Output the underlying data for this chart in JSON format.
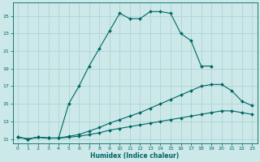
{
  "xlabel": "Humidex (Indice chaleur)",
  "bg_color": "#cce8e8",
  "grid_color": "#b0d4d4",
  "line_color": "#006666",
  "xlim": [
    -0.5,
    23.5
  ],
  "ylim": [
    10.5,
    26.5
  ],
  "xticks": [
    0,
    1,
    2,
    3,
    4,
    5,
    6,
    7,
    8,
    9,
    10,
    11,
    12,
    13,
    14,
    15,
    16,
    17,
    18,
    19,
    20,
    21,
    22,
    23
  ],
  "yticks": [
    11,
    13,
    15,
    17,
    19,
    21,
    23,
    25
  ],
  "lines": [
    {
      "x": [
        0,
        1,
        2,
        3,
        4,
        5,
        6,
        7,
        8,
        9,
        10,
        11,
        12,
        13,
        14,
        15,
        16,
        17,
        18,
        19
      ],
      "y": [
        11.2,
        11.0,
        11.2,
        11.1,
        11.1,
        15.0,
        17.0,
        19.3,
        21.3,
        23.3,
        25.3,
        24.7,
        24.7,
        25.5,
        25.5,
        25.3,
        23.0,
        22.2,
        19.3,
        19.3
      ]
    },
    {
      "x": [
        0,
        1,
        2,
        3,
        4,
        5,
        6,
        7,
        8,
        9,
        10,
        11,
        12,
        13,
        14,
        15,
        16,
        17,
        18,
        19,
        20,
        21,
        22,
        23
      ],
      "y": [
        11.2,
        11.0,
        11.2,
        11.1,
        11.1,
        11.3,
        11.5,
        11.9,
        12.3,
        12.8,
        13.2,
        13.6,
        14.0,
        14.5,
        15.0,
        15.5,
        16.0,
        16.5,
        17.0,
        17.2,
        17.2,
        16.5,
        15.3,
        14.8
      ]
    },
    {
      "x": [
        0,
        1,
        2,
        3,
        4,
        5,
        6,
        7,
        8,
        9,
        10,
        11,
        12,
        13,
        14,
        15,
        16,
        17,
        18,
        19,
        20,
        21,
        22,
        23
      ],
      "y": [
        11.2,
        11.0,
        11.2,
        11.1,
        11.1,
        11.2,
        11.3,
        11.5,
        11.7,
        12.0,
        12.2,
        12.4,
        12.6,
        12.8,
        13.0,
        13.2,
        13.4,
        13.6,
        13.8,
        14.0,
        14.2,
        14.2,
        14.0,
        13.8
      ]
    }
  ]
}
